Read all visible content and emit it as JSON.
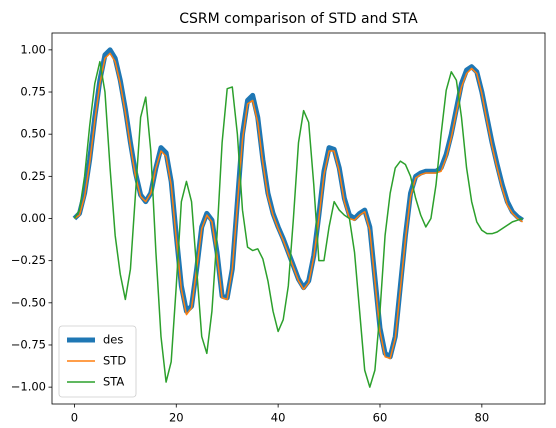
{
  "chart_data": {
    "type": "line",
    "title": "CSRM comparison of STD and STA",
    "x": [
      0,
      1,
      2,
      3,
      4,
      5,
      6,
      7,
      8,
      9,
      10,
      11,
      12,
      13,
      14,
      15,
      16,
      17,
      18,
      19,
      20,
      21,
      22,
      23,
      24,
      25,
      26,
      27,
      28,
      29,
      30,
      31,
      32,
      33,
      34,
      35,
      36,
      37,
      38,
      39,
      40,
      41,
      42,
      43,
      44,
      45,
      46,
      47,
      48,
      49,
      50,
      51,
      52,
      53,
      54,
      55,
      56,
      57,
      58,
      59,
      60,
      61,
      62,
      63,
      64,
      65,
      66,
      67,
      68,
      69,
      70,
      71,
      72,
      73,
      74,
      75,
      76,
      77,
      78,
      79,
      80,
      81,
      82,
      83,
      84,
      85,
      86,
      87,
      88
    ],
    "series": [
      {
        "name": "des",
        "color": "#1f77b4",
        "values": [
          0,
          0.03,
          0.15,
          0.35,
          0.6,
          0.82,
          0.97,
          1.0,
          0.95,
          0.82,
          0.65,
          0.45,
          0.27,
          0.14,
          0.1,
          0.15,
          0.3,
          0.42,
          0.39,
          0.22,
          -0.1,
          -0.4,
          -0.55,
          -0.52,
          -0.3,
          -0.05,
          0.03,
          -0.01,
          -0.2,
          -0.46,
          -0.47,
          -0.3,
          0.1,
          0.5,
          0.7,
          0.73,
          0.6,
          0.35,
          0.15,
          0.03,
          -0.05,
          -0.12,
          -0.2,
          -0.28,
          -0.36,
          -0.41,
          -0.37,
          -0.22,
          0.02,
          0.28,
          0.42,
          0.41,
          0.3,
          0.12,
          0.02,
          0.0,
          0.03,
          0.05,
          -0.05,
          -0.35,
          -0.65,
          -0.8,
          -0.82,
          -0.7,
          -0.4,
          -0.1,
          0.15,
          0.25,
          0.27,
          0.28,
          0.28,
          0.28,
          0.3,
          0.38,
          0.5,
          0.65,
          0.8,
          0.88,
          0.9,
          0.87,
          0.75,
          0.6,
          0.45,
          0.32,
          0.2,
          0.1,
          0.04,
          0.01,
          -0.01
        ]
      },
      {
        "name": "STD",
        "color": "#ff7f0e",
        "values": [
          0,
          0.02,
          0.13,
          0.33,
          0.58,
          0.8,
          0.95,
          0.98,
          0.93,
          0.8,
          0.63,
          0.43,
          0.25,
          0.13,
          0.1,
          0.15,
          0.3,
          0.4,
          0.37,
          0.2,
          -0.12,
          -0.42,
          -0.57,
          -0.53,
          -0.3,
          -0.06,
          0.02,
          -0.02,
          -0.22,
          -0.47,
          -0.48,
          -0.3,
          0.08,
          0.47,
          0.68,
          0.7,
          0.57,
          0.33,
          0.13,
          0.02,
          -0.06,
          -0.13,
          -0.21,
          -0.29,
          -0.37,
          -0.42,
          -0.38,
          -0.23,
          0.0,
          0.26,
          0.4,
          0.4,
          0.28,
          0.1,
          0.0,
          -0.01,
          0.02,
          0.04,
          -0.07,
          -0.37,
          -0.67,
          -0.82,
          -0.83,
          -0.71,
          -0.42,
          -0.12,
          0.13,
          0.24,
          0.26,
          0.27,
          0.27,
          0.27,
          0.28,
          0.36,
          0.48,
          0.63,
          0.78,
          0.86,
          0.89,
          0.86,
          0.74,
          0.58,
          0.43,
          0.3,
          0.18,
          0.08,
          0.03,
          0.0,
          -0.02
        ]
      },
      {
        "name": "STA",
        "color": "#2ca02c",
        "values": [
          0,
          0.05,
          0.25,
          0.55,
          0.8,
          0.93,
          0.75,
          0.3,
          -0.1,
          -0.33,
          -0.48,
          -0.3,
          0.15,
          0.6,
          0.72,
          0.4,
          -0.2,
          -0.7,
          -0.97,
          -0.85,
          -0.4,
          0.1,
          0.22,
          0.1,
          -0.3,
          -0.7,
          -0.8,
          -0.55,
          -0.1,
          0.45,
          0.77,
          0.78,
          0.5,
          0.05,
          -0.17,
          -0.19,
          -0.18,
          -0.24,
          -0.37,
          -0.55,
          -0.67,
          -0.6,
          -0.4,
          0,
          0.45,
          0.64,
          0.57,
          0.2,
          -0.25,
          -0.25,
          -0.05,
          0.1,
          0.05,
          0.02,
          0,
          -0.2,
          -0.55,
          -0.9,
          -1.0,
          -0.9,
          -0.55,
          -0.1,
          0.15,
          0.3,
          0.34,
          0.32,
          0.25,
          0.12,
          0.02,
          -0.05,
          0,
          0.2,
          0.5,
          0.76,
          0.87,
          0.82,
          0.6,
          0.3,
          0.1,
          -0.02,
          -0.07,
          -0.09,
          -0.09,
          -0.08,
          -0.06,
          -0.04,
          -0.02,
          -0.01,
          0
        ]
      }
    ],
    "xlim": [
      -4.4,
      92.4
    ],
    "ylim": [
      -1.1,
      1.1
    ],
    "xticks": [
      0,
      20,
      40,
      60,
      80
    ],
    "yticks": [
      {
        "value": -1.0,
        "label": "−1.00"
      },
      {
        "value": -0.75,
        "label": "−0.75"
      },
      {
        "value": -0.5,
        "label": "−0.50"
      },
      {
        "value": -0.25,
        "label": "−0.25"
      },
      {
        "value": 0.0,
        "label": "0.00"
      },
      {
        "value": 0.25,
        "label": "0.25"
      },
      {
        "value": 0.5,
        "label": "0.50"
      },
      {
        "value": 0.75,
        "label": "0.75"
      },
      {
        "value": 1.0,
        "label": "1.00"
      }
    ],
    "legend": "lower left"
  }
}
